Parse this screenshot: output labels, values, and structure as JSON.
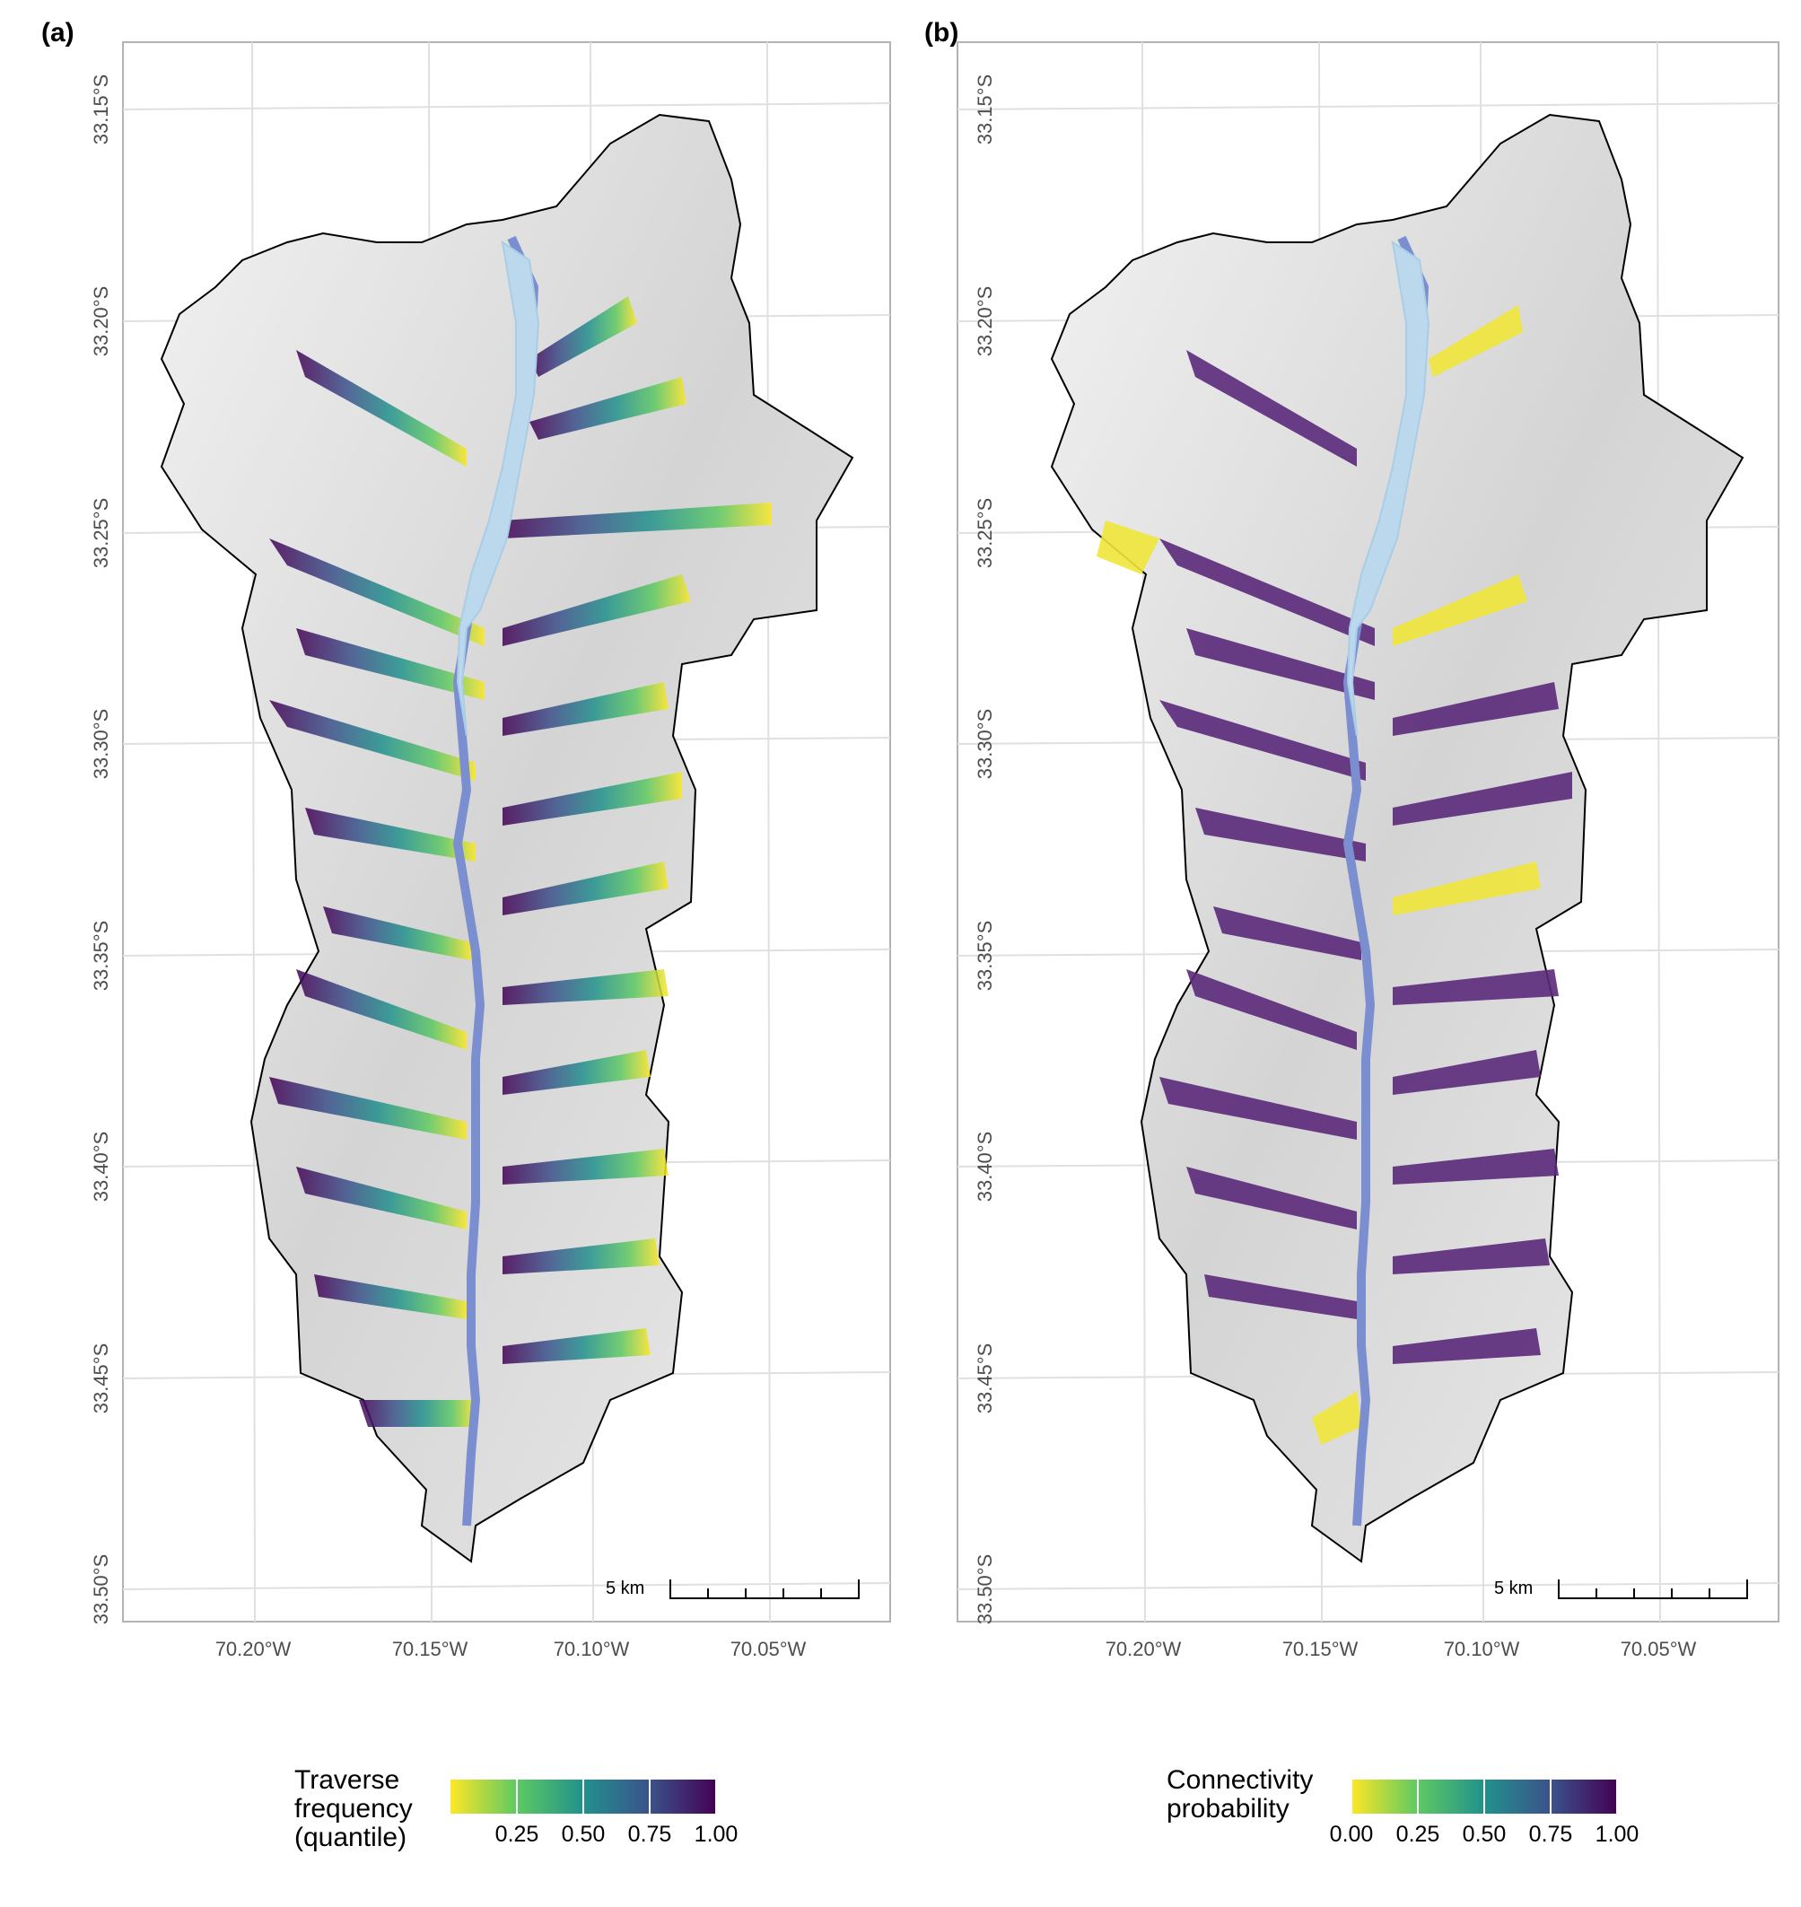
{
  "panels": [
    {
      "letter": "(a)",
      "y_ticks": [
        "33.15°S",
        "33.20°S",
        "33.25°S",
        "33.30°S",
        "33.35°S",
        "33.40°S",
        "33.45°S",
        "33.50°S"
      ],
      "x_ticks": [
        "70.20°W",
        "70.15°W",
        "70.10°W",
        "70.05°W"
      ],
      "scale_bar": "5 km",
      "legend": {
        "title": "Traverse\nfrequency\n(quantile)",
        "ticks": [
          "0.25",
          "0.50",
          "0.75",
          "1.00"
        ],
        "tick_values": [
          0.25,
          0.5,
          0.75,
          1.0
        ],
        "range": [
          0.0,
          1.0
        ],
        "palette": [
          "#fde725",
          "#5ec962",
          "#21918c",
          "#3b528b",
          "#440154"
        ]
      }
    },
    {
      "letter": "(b)",
      "y_ticks": [
        "33.15°S",
        "33.20°S",
        "33.25°S",
        "33.30°S",
        "33.35°S",
        "33.40°S",
        "33.45°S",
        "33.50°S"
      ],
      "x_ticks": [
        "70.20°W",
        "70.15°W",
        "70.10°W",
        "70.05°W"
      ],
      "scale_bar": "5 km",
      "legend": {
        "title": "Connectivity\nprobability",
        "ticks": [
          "0.00",
          "0.25",
          "0.50",
          "0.75",
          "1.00"
        ],
        "tick_values": [
          0.0,
          0.25,
          0.5,
          0.75,
          1.0
        ],
        "range": [
          0.0,
          1.0
        ],
        "palette": [
          "#fde725",
          "#5ec962",
          "#21918c",
          "#3b528b",
          "#440154"
        ]
      }
    }
  ],
  "colors": {
    "hillshade": "#d9d9d9",
    "river": "#a9cde6",
    "lake": "#bcd8ec",
    "boundary": "#000000",
    "grid": "#e0e0e0",
    "frame": "#b3b3b3"
  }
}
